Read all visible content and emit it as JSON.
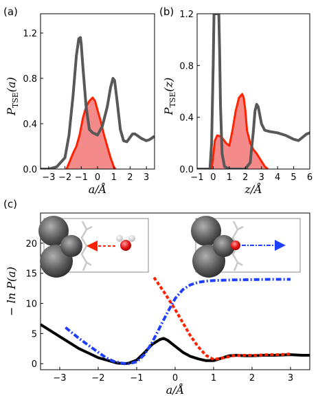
{
  "chart_data": [
    {
      "panel_label": "(a)",
      "type": "area",
      "xlabel": "a/Å",
      "ylabel": "P_TSE(a)",
      "xlim": [
        -3.5,
        3.5
      ],
      "ylim": [
        0,
        1.37
      ],
      "xticks": [
        "−3",
        "−2",
        "−1",
        "0",
        "1",
        "2",
        "3"
      ],
      "xtick_values": [
        -3,
        -2,
        -1,
        0,
        1,
        2,
        3
      ],
      "yticks": [
        "0.0",
        "0.4",
        "0.8",
        "1.2"
      ],
      "ytick_values": [
        0,
        0.4,
        0.8,
        1.2
      ],
      "colors": {
        "gray": "#585858",
        "red": "#ff2200",
        "fill": "#f58a8a"
      },
      "series": [
        {
          "color": "gray",
          "style": "line",
          "x": [
            -3.5,
            -3.0,
            -2.5,
            -2.0,
            -1.75,
            -1.5,
            -1.3,
            -1.15,
            -1.05,
            -1.0,
            -0.9,
            -0.7,
            -0.5,
            -0.3,
            0.0,
            0.3,
            0.6,
            0.8,
            0.95,
            1.05,
            1.2,
            1.4,
            1.6,
            1.8,
            2.0,
            2.15,
            2.3,
            2.5,
            2.7,
            3.0,
            3.2,
            3.5
          ],
          "y": [
            0.0,
            0.0,
            0.02,
            0.1,
            0.3,
            0.65,
            1.0,
            1.15,
            1.16,
            1.1,
            0.9,
            0.55,
            0.35,
            0.32,
            0.3,
            0.38,
            0.55,
            0.72,
            0.8,
            0.78,
            0.6,
            0.35,
            0.25,
            0.24,
            0.28,
            0.31,
            0.31,
            0.29,
            0.27,
            0.25,
            0.26,
            0.29
          ]
        },
        {
          "color": "red",
          "style": "filled",
          "x": [
            -1.9,
            -1.7,
            -1.5,
            -1.3,
            -1.1,
            -0.9,
            -0.7,
            -0.5,
            -0.3,
            -0.15,
            0.0,
            0.2,
            0.4,
            0.6,
            0.8,
            1.0,
            1.1
          ],
          "y": [
            0.0,
            0.07,
            0.14,
            0.2,
            0.3,
            0.45,
            0.55,
            0.6,
            0.63,
            0.6,
            0.52,
            0.42,
            0.3,
            0.2,
            0.1,
            0.02,
            0.0
          ]
        }
      ]
    },
    {
      "panel_label": "(b)",
      "type": "area",
      "xlabel": "z/Å",
      "ylabel": "P_TSE(z)",
      "xlim": [
        -1,
        6
      ],
      "ylim": [
        0,
        1.2
      ],
      "xticks": [
        "−1",
        "0",
        "1",
        "2",
        "3",
        "4",
        "5",
        "6"
      ],
      "xtick_values": [
        -1,
        0,
        1,
        2,
        3,
        4,
        5,
        6
      ],
      "yticks": [
        "0.0",
        "0.4",
        "0.8",
        "1.2"
      ],
      "ytick_values": [
        0,
        0.4,
        0.8,
        1.2
      ],
      "colors": {
        "gray": "#585858",
        "red": "#ff2200",
        "fill": "#f58a8a"
      },
      "series": [
        {
          "color": "gray",
          "style": "line",
          "x": [
            -1.0,
            -0.2,
            -0.1,
            0.0,
            0.05,
            0.1,
            0.3,
            0.35,
            0.4,
            0.45,
            0.55,
            0.7,
            1.0,
            1.5,
            2.0,
            2.3,
            2.5,
            2.6,
            2.7,
            2.8,
            3.0,
            3.2,
            3.5,
            4.0,
            4.5,
            5.0,
            5.3,
            5.5,
            5.8,
            6.0
          ],
          "y": [
            0.0,
            0.0,
            0.2,
            0.8,
            1.2,
            1.2,
            1.2,
            1.2,
            0.9,
            0.5,
            0.12,
            0.02,
            0.0,
            0.0,
            0.0,
            0.05,
            0.3,
            0.45,
            0.5,
            0.48,
            0.35,
            0.3,
            0.29,
            0.28,
            0.26,
            0.23,
            0.22,
            0.24,
            0.27,
            0.28
          ]
        },
        {
          "color": "red",
          "style": "filled",
          "x": [
            -0.1,
            0.0,
            0.1,
            0.25,
            0.5,
            0.8,
            1.0,
            1.2,
            1.4,
            1.6,
            1.8,
            1.9,
            2.0,
            2.1,
            2.3,
            2.5,
            2.7,
            3.0,
            3.2,
            3.4
          ],
          "y": [
            0.0,
            0.1,
            0.22,
            0.26,
            0.25,
            0.2,
            0.18,
            0.3,
            0.45,
            0.55,
            0.58,
            0.55,
            0.45,
            0.3,
            0.2,
            0.15,
            0.12,
            0.06,
            0.02,
            0.0
          ]
        }
      ]
    },
    {
      "panel_label": "(c)",
      "type": "line",
      "xlabel": "a/Å",
      "ylabel": "−ln P(a)",
      "xlim": [
        -3.5,
        3.5
      ],
      "ylim": [
        -1,
        25
      ],
      "xticks": [
        "−3",
        "−2",
        "−1",
        "0",
        "1",
        "2",
        "3"
      ],
      "xtick_values": [
        -3,
        -2,
        -1,
        0,
        1,
        2,
        3
      ],
      "yticks": [
        "0",
        "5",
        "10",
        "15",
        "20"
      ],
      "ytick_values": [
        0,
        5,
        10,
        15,
        20
      ],
      "colors": {
        "black": "#000000",
        "red": "#ff2200",
        "blue": "#1f3fff"
      },
      "series": [
        {
          "color": "black",
          "style": "solid",
          "x": [
            -3.5,
            -3.0,
            -2.5,
            -2.0,
            -1.5,
            -1.3,
            -1.2,
            -1.0,
            -0.8,
            -0.6,
            -0.4,
            -0.3,
            -0.2,
            0.0,
            0.2,
            0.4,
            0.6,
            0.8,
            1.0,
            1.2,
            1.4,
            1.6,
            1.8,
            2.0,
            2.3,
            2.6,
            3.0,
            3.3,
            3.5
          ],
          "y": [
            6.5,
            4.5,
            2.5,
            1.0,
            0.1,
            0.0,
            0.1,
            0.6,
            1.8,
            3.2,
            4.0,
            4.2,
            3.9,
            2.9,
            1.9,
            1.2,
            0.8,
            0.5,
            0.5,
            0.9,
            1.3,
            1.4,
            1.3,
            1.3,
            1.4,
            1.4,
            1.5,
            1.4,
            1.4
          ]
        },
        {
          "color": "red",
          "style": "dashed",
          "x": [
            -0.55,
            -0.3,
            0.0,
            0.2,
            0.4,
            0.6,
            0.8,
            1.0,
            1.2,
            1.5,
            1.8,
            2.1,
            2.4,
            2.7,
            3.0
          ],
          "y": [
            14.3,
            12.0,
            9.0,
            6.8,
            4.6,
            2.8,
            1.4,
            0.7,
            0.9,
            1.3,
            1.4,
            1.4,
            1.5,
            1.5,
            1.6
          ]
        },
        {
          "color": "blue",
          "style": "dashdot",
          "x": [
            -2.85,
            -2.5,
            -2.2,
            -2.0,
            -1.8,
            -1.6,
            -1.4,
            -1.2,
            -1.0,
            -0.8,
            -0.6,
            -0.4,
            -0.2,
            0.0,
            0.2,
            0.4,
            0.6,
            0.8,
            1.0,
            1.5,
            2.0,
            2.5,
            3.0
          ],
          "y": [
            6.0,
            4.2,
            2.8,
            1.9,
            1.0,
            0.4,
            0.1,
            0.0,
            0.3,
            1.5,
            3.5,
            6.0,
            8.5,
            10.8,
            12.3,
            13.1,
            13.5,
            13.7,
            13.8,
            13.9,
            13.95,
            14.0,
            14.0
          ]
        }
      ],
      "insets": [
        {
          "name": "inset-left",
          "arrow_color": "#ff2200",
          "arrow_direction": "left"
        },
        {
          "name": "inset-right",
          "arrow_color": "#1f3fff",
          "arrow_direction": "right"
        }
      ]
    }
  ]
}
